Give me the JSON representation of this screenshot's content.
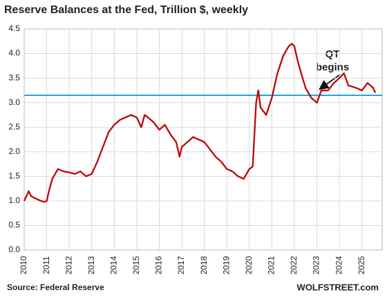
{
  "chart_data": {
    "type": "line",
    "title": "Reserve Balances at the Fed, Trillion $, weekly",
    "source": "Source: Federal Reserve",
    "credit": "WOLFSTREET.com",
    "annotation": [
      "QT",
      "begins"
    ],
    "reference_line": 3.15,
    "reference_color": "#29a3d4",
    "x": [
      2010.0,
      2010.1,
      2010.2,
      2010.3,
      2010.5,
      2010.75,
      2010.9,
      2011.0,
      2011.1,
      2011.25,
      2011.5,
      2011.75,
      2012.0,
      2012.25,
      2012.5,
      2012.75,
      2013.0,
      2013.25,
      2013.5,
      2013.75,
      2014.0,
      2014.25,
      2014.5,
      2014.75,
      2015.0,
      2015.2,
      2015.35,
      2015.5,
      2015.75,
      2016.0,
      2016.25,
      2016.5,
      2016.75,
      2016.9,
      2017.0,
      2017.25,
      2017.5,
      2017.75,
      2018.0,
      2018.25,
      2018.5,
      2018.75,
      2019.0,
      2019.25,
      2019.5,
      2019.75,
      2020.0,
      2020.15,
      2020.3,
      2020.4,
      2020.5,
      2020.75,
      2021.0,
      2021.25,
      2021.5,
      2021.75,
      2021.9,
      2022.0,
      2022.15,
      2022.3,
      2022.5,
      2022.75,
      2023.0,
      2023.2,
      2023.5,
      2023.75,
      2024.0,
      2024.2,
      2024.4,
      2024.75,
      2025.0,
      2025.25,
      2025.5,
      2025.6
    ],
    "series": [
      {
        "name": "Reserve balances",
        "color": "#e01010",
        "values": [
          1.0,
          1.1,
          1.2,
          1.1,
          1.05,
          1.0,
          0.98,
          1.0,
          1.2,
          1.45,
          1.65,
          1.6,
          1.58,
          1.55,
          1.6,
          1.5,
          1.55,
          1.8,
          2.1,
          2.4,
          2.55,
          2.65,
          2.7,
          2.75,
          2.7,
          2.5,
          2.75,
          2.7,
          2.6,
          2.45,
          2.55,
          2.35,
          2.2,
          1.9,
          2.1,
          2.2,
          2.3,
          2.25,
          2.2,
          2.05,
          1.9,
          1.8,
          1.65,
          1.6,
          1.5,
          1.45,
          1.65,
          1.7,
          3.0,
          3.25,
          2.9,
          2.75,
          3.1,
          3.6,
          3.95,
          4.15,
          4.2,
          4.15,
          3.85,
          3.6,
          3.3,
          3.1,
          3.0,
          3.25,
          3.25,
          3.4,
          3.5,
          3.6,
          3.35,
          3.3,
          3.25,
          3.4,
          3.3,
          3.2
        ]
      }
    ],
    "xlim": [
      2010,
      2025.9
    ],
    "xticks": [
      2010,
      2011,
      2012,
      2013,
      2014,
      2015,
      2016,
      2017,
      2018,
      2019,
      2020,
      2021,
      2022,
      2023,
      2024,
      2025
    ],
    "ylim": [
      0,
      4.5
    ],
    "yticks": [
      {
        "value": 0,
        "label": "0.0"
      },
      0.5,
      {
        "value": 1,
        "label": "1.0"
      },
      1.5,
      {
        "value": 2,
        "label": "2.0"
      },
      2.5,
      {
        "value": 3,
        "label": "3.0"
      },
      3.5,
      {
        "value": 4,
        "label": "4.0"
      },
      4.5
    ],
    "grid": true
  }
}
